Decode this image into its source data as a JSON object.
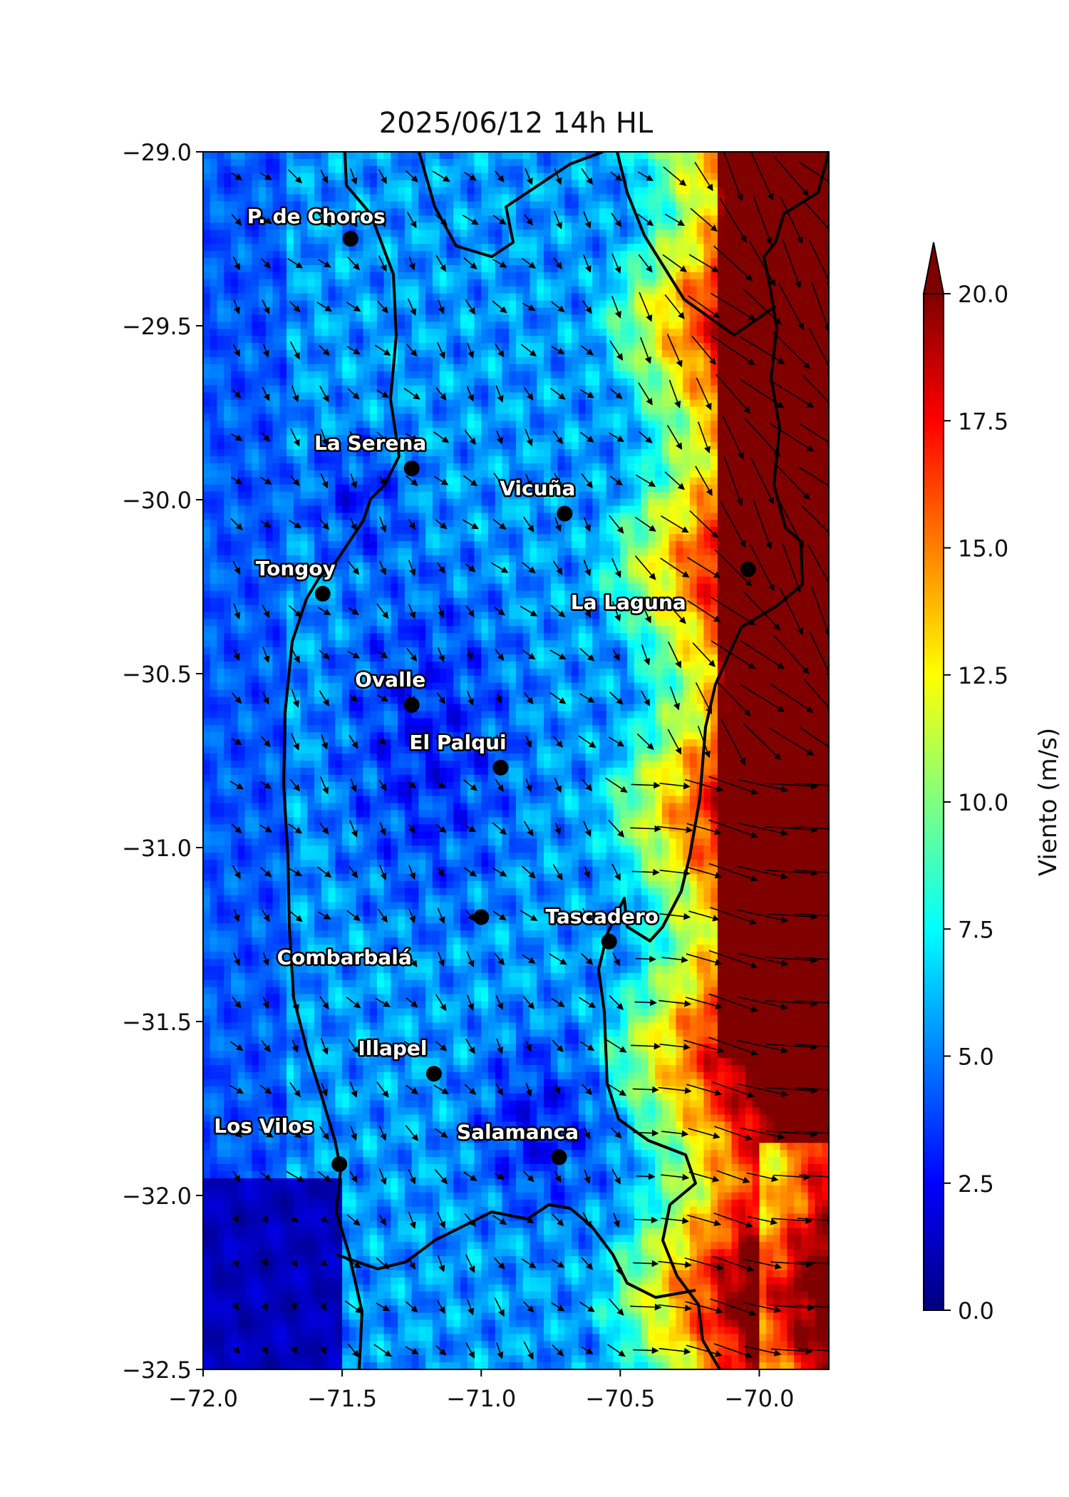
{
  "title": "2025/06/12 14h HL",
  "x_ticks": [
    "−72.0",
    "−71.5",
    "−71.0",
    "−70.5",
    "−70.0"
  ],
  "y_ticks": [
    "−29.0",
    "−29.5",
    "−30.0",
    "−30.5",
    "−31.0",
    "−31.5",
    "−32.0",
    "−32.5"
  ],
  "colorbar": {
    "label": "Viento (m/s)",
    "ticks": [
      "0.0",
      "2.5",
      "5.0",
      "7.5",
      "10.0",
      "12.5",
      "15.0",
      "17.5",
      "20.0"
    ],
    "extend": "max"
  },
  "cities": [
    {
      "name": "P. de Choros",
      "lon": -71.47,
      "lat": -29.25
    },
    {
      "name": "La Serena",
      "lon": -71.25,
      "lat": -29.91
    },
    {
      "name": "Vicuña",
      "lon": -70.7,
      "lat": -30.04
    },
    {
      "name": "Tongoy",
      "lon": -71.57,
      "lat": -30.27
    },
    {
      "name": "",
      "lon": -70.04,
      "lat": -30.2
    },
    {
      "name": "La Laguna",
      "lon": -70.04,
      "lat": -30.2
    },
    {
      "name": "Ovalle",
      "lon": -71.25,
      "lat": -30.59
    },
    {
      "name": "El Palqui",
      "lon": -70.93,
      "lat": -30.77
    },
    {
      "name": "Tascadero",
      "lon": -70.54,
      "lat": -31.27
    },
    {
      "name": "Combarbalá",
      "lon": -71.0,
      "lat": -31.2
    },
    {
      "name": "Illapel",
      "lon": -71.17,
      "lat": -31.65
    },
    {
      "name": "Los Vilos",
      "lon": -71.51,
      "lat": -31.91
    },
    {
      "name": "Salamanca",
      "lon": -70.72,
      "lat": -31.89
    }
  ],
  "colors": {
    "colormap": "jet",
    "land_outline": "#000000"
  }
}
